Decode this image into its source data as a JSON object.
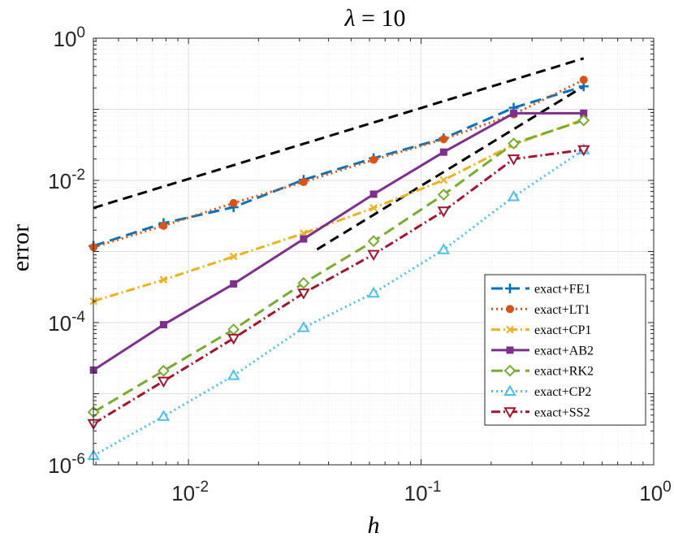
{
  "chart_data": {
    "type": "line",
    "title": "λ = 10",
    "title_symbol": "λ",
    "title_rest": " = 10",
    "xlabel": "h",
    "ylabel": "error",
    "xscale": "log",
    "yscale": "log",
    "xlim": [
      0.0039,
      1
    ],
    "ylim": [
      1e-06,
      1
    ],
    "grid": true,
    "legend_position": "bottom-right",
    "x_ticks": [
      {
        "base": "10",
        "exp": "-2",
        "value": 0.01
      },
      {
        "base": "10",
        "exp": "-1",
        "value": 0.1
      },
      {
        "base": "10",
        "exp": "0",
        "value": 1
      }
    ],
    "y_ticks": [
      {
        "base": "10",
        "exp": "0",
        "value": 1
      },
      {
        "base": "10",
        "exp": "-2",
        "value": 0.01
      },
      {
        "base": "10",
        "exp": "-4",
        "value": 0.0001
      },
      {
        "base": "10",
        "exp": "-6",
        "value": 1e-06
      }
    ],
    "x": [
      0.00390625,
      0.0078125,
      0.015625,
      0.03125,
      0.0625,
      0.125,
      0.25,
      0.5
    ],
    "series": [
      {
        "name": "exact+FE1",
        "color": "#0072BD",
        "dash": "14,7",
        "marker": "plus",
        "values": [
          0.0012,
          0.0025,
          0.0042,
          0.0102,
          0.0205,
          0.039,
          0.105,
          0.21
        ]
      },
      {
        "name": "exact+LT1",
        "color": "#D95319",
        "dash": "2,4",
        "marker": "circle",
        "values": [
          0.00115,
          0.0023,
          0.0048,
          0.0095,
          0.0195,
          0.038,
          0.085,
          0.26
        ]
      },
      {
        "name": "exact+CP1",
        "color": "#EDB120",
        "dash": "11,4,2,4",
        "marker": "x",
        "values": [
          0.0002,
          0.0004,
          0.00085,
          0.0018,
          0.0041,
          0.0101,
          0.032,
          0.072
        ]
      },
      {
        "name": "exact+AB2",
        "color": "#7E2F8E",
        "dash": "",
        "marker": "square",
        "values": [
          2.15e-05,
          9.35e-05,
          0.00035,
          0.0015,
          0.0064,
          0.025,
          0.088,
          0.088
        ]
      },
      {
        "name": "exact+RK2",
        "color": "#77AC30",
        "dash": "14,7",
        "marker": "diamond",
        "values": [
          5.5e-06,
          2.1e-05,
          8e-05,
          0.00036,
          0.0014,
          0.0063,
          0.033,
          0.07
        ]
      },
      {
        "name": "exact+CP2",
        "color": "#4DBEEE",
        "dash": "2,4",
        "marker": "triangle-up",
        "values": [
          1.35e-06,
          4.8e-06,
          1.8e-05,
          8.5e-05,
          0.00026,
          0.00106,
          0.0059,
          0.027
        ]
      },
      {
        "name": "exact+SS2",
        "color": "#A2142F",
        "dash": "11,4,2,4",
        "marker": "triangle-down",
        "values": [
          3.8e-06,
          1.5e-05,
          6e-05,
          0.00026,
          0.00091,
          0.0037,
          0.02,
          0.027
        ]
      }
    ],
    "reference_lines": [
      {
        "name": "order-1 reference",
        "color": "#000000",
        "dash": "12,7",
        "x": [
          0.0039,
          0.5
        ],
        "y": [
          0.0041,
          0.52
        ]
      },
      {
        "name": "order-2 reference",
        "color": "#000000",
        "dash": "12,7",
        "x": [
          0.0357,
          0.5
        ],
        "y": [
          0.00107,
          0.21
        ]
      }
    ]
  }
}
